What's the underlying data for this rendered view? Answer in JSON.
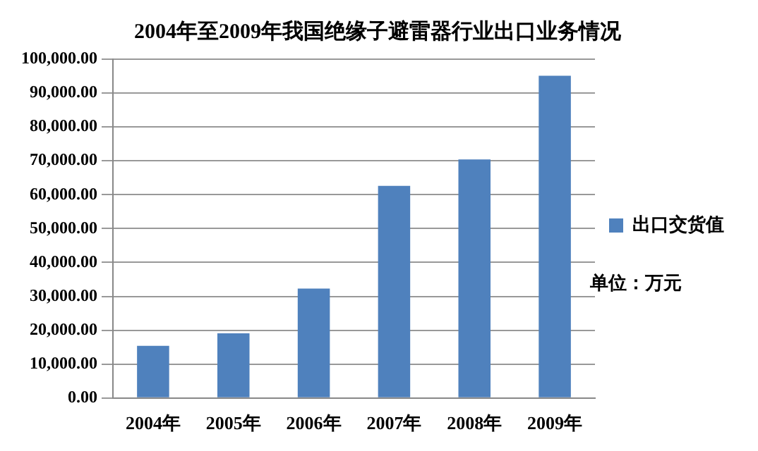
{
  "chart_data": {
    "type": "bar",
    "title": "2004年至2009年我国绝缘子避雷器行业出口业务情况",
    "categories": [
      "2004年",
      "2005年",
      "2006年",
      "2007年",
      "2008年",
      "2009年"
    ],
    "series": [
      {
        "name": "出口交货值",
        "color": "#4f81bd",
        "values": [
          15400,
          19100,
          32300,
          62600,
          70400,
          95100
        ]
      }
    ],
    "ylim": [
      0,
      100000
    ],
    "yticks": [
      {
        "value": 0,
        "label": "0.00"
      },
      {
        "value": 10000,
        "label": "10,000.00"
      },
      {
        "value": 20000,
        "label": "20,000.00"
      },
      {
        "value": 30000,
        "label": "30,000.00"
      },
      {
        "value": 40000,
        "label": "40,000.00"
      },
      {
        "value": 50000,
        "label": "50,000.00"
      },
      {
        "value": 60000,
        "label": "60,000.00"
      },
      {
        "value": 70000,
        "label": "70,000.00"
      },
      {
        "value": 80000,
        "label": "80,000.00"
      },
      {
        "value": 90000,
        "label": "90,000.00"
      },
      {
        "value": 100000,
        "label": "100,000.00"
      }
    ],
    "grid": "y",
    "legend": "right",
    "annotations": [
      "单位：万元"
    ]
  }
}
